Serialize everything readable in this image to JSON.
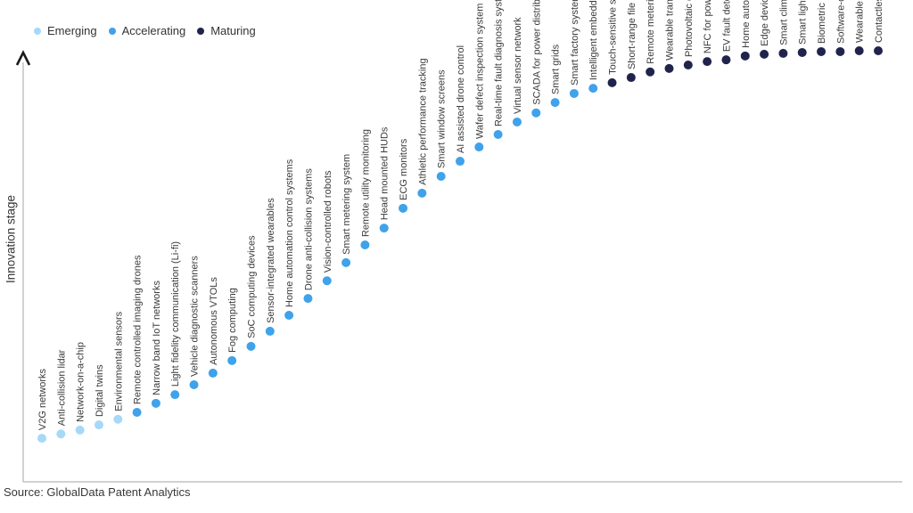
{
  "legend": {
    "items": [
      {
        "label": "Emerging",
        "color": "#A6D9F7"
      },
      {
        "label": "Accelerating",
        "color": "#3FA2EA"
      },
      {
        "label": "Maturing",
        "color": "#20244C"
      }
    ]
  },
  "axis": {
    "y_label": "Innovation stage"
  },
  "source": "Source: GlobalData Patent Analytics",
  "chart_data": {
    "type": "scatter",
    "title": "",
    "xlabel": "",
    "ylabel": "Innovation stage",
    "legend_position": "top-left",
    "grid": false,
    "ylim": [
      0,
      100
    ],
    "value_note": "value = relative innovation-stage height, 0 at x-axis to 100 at top plateau",
    "stage_colors": {
      "Emerging": "#A6D9F7",
      "Accelerating": "#3FA2EA",
      "Maturing": "#20244C"
    },
    "items": [
      {
        "label": "V2G networks",
        "stage": "Emerging",
        "value": 10.2
      },
      {
        "label": "Anti-collision lidar",
        "stage": "Emerging",
        "value": 11.2
      },
      {
        "label": "Network-on-a-chip",
        "stage": "Emerging",
        "value": 12.1
      },
      {
        "label": "Digital twins",
        "stage": "Emerging",
        "value": 13.3
      },
      {
        "label": "Environmental sensors",
        "stage": "Emerging",
        "value": 14.6
      },
      {
        "label": "Remote controlled imaging drones",
        "stage": "Accelerating",
        "value": 16.2
      },
      {
        "label": "Narrow band IoT networks",
        "stage": "Accelerating",
        "value": 18.3
      },
      {
        "label": "Light fidelity communication (Li-fi)",
        "stage": "Accelerating",
        "value": 20.3
      },
      {
        "label": "Vehicle diagnostic scanners",
        "stage": "Accelerating",
        "value": 22.6
      },
      {
        "label": "Autonomous VTOLs",
        "stage": "Accelerating",
        "value": 25.3
      },
      {
        "label": "Fog computing",
        "stage": "Accelerating",
        "value": 28.2
      },
      {
        "label": "SoC computing devices",
        "stage": "Accelerating",
        "value": 31.5
      },
      {
        "label": "Sensor-integrated wearables",
        "stage": "Accelerating",
        "value": 35.0
      },
      {
        "label": "Home automation control systems",
        "stage": "Accelerating",
        "value": 38.7
      },
      {
        "label": "Drone anti-collision systems",
        "stage": "Accelerating",
        "value": 42.6
      },
      {
        "label": "Vision-controlled robots",
        "stage": "Accelerating",
        "value": 46.7
      },
      {
        "label": "Smart metering system",
        "stage": "Accelerating",
        "value": 50.9
      },
      {
        "label": "Remote utility monitoring",
        "stage": "Accelerating",
        "value": 55.0
      },
      {
        "label": "Head mounted HUDs",
        "stage": "Accelerating",
        "value": 58.9
      },
      {
        "label": "ECG monitors",
        "stage": "Accelerating",
        "value": 63.5
      },
      {
        "label": "Athletic performance tracking",
        "stage": "Accelerating",
        "value": 67.0
      },
      {
        "label": "Smart window screens",
        "stage": "Accelerating",
        "value": 70.9
      },
      {
        "label": "AI assisted drone control",
        "stage": "Accelerating",
        "value": 74.4
      },
      {
        "label": "Wafer defect inspection system",
        "stage": "Accelerating",
        "value": 77.7
      },
      {
        "label": "Real-time fault diagnosis systems",
        "stage": "Accelerating",
        "value": 80.6
      },
      {
        "label": "Virtual sensor network",
        "stage": "Accelerating",
        "value": 83.5
      },
      {
        "label": "SCADA for power distribution",
        "stage": "Accelerating",
        "value": 85.6
      },
      {
        "label": "Smart grids",
        "stage": "Accelerating",
        "value": 88.0
      },
      {
        "label": "Smart factory systems",
        "stage": "Accelerating",
        "value": 90.1
      },
      {
        "label": "Intelligent embedded systems",
        "stage": "Accelerating",
        "value": 91.3
      },
      {
        "label": "Touch-sensitive switches",
        "stage": "Maturing",
        "value": 92.6
      },
      {
        "label": "Short-range file transfer networks",
        "stage": "Maturing",
        "value": 93.8
      },
      {
        "label": "Remote metering smart grids",
        "stage": "Maturing",
        "value": 95.1
      },
      {
        "label": "Wearable transceivers",
        "stage": "Maturing",
        "value": 95.9
      },
      {
        "label": "Photovoltaic drones",
        "stage": "Maturing",
        "value": 96.7
      },
      {
        "label": "NFC for power transfer",
        "stage": "Maturing",
        "value": 97.5
      },
      {
        "label": "EV fault detection systems",
        "stage": "Maturing",
        "value": 97.9
      },
      {
        "label": "Home automation network security",
        "stage": "Maturing",
        "value": 98.8
      },
      {
        "label": "Edge device diagnostics",
        "stage": "Maturing",
        "value": 99.2
      },
      {
        "label": "Smart climate control systems",
        "stage": "Maturing",
        "value": 99.4
      },
      {
        "label": "Smart lighting",
        "stage": "Maturing",
        "value": 99.6
      },
      {
        "label": "Biometric recognition sensors",
        "stage": "Maturing",
        "value": 99.8
      },
      {
        "label": "Software-defined wide area network (WAN)",
        "stage": "Maturing",
        "value": 99.8
      },
      {
        "label": "Wearable physiological monitors",
        "stage": "Maturing",
        "value": 100
      },
      {
        "label": "Contactless verification",
        "stage": "Maturing",
        "value": 100
      }
    ]
  }
}
